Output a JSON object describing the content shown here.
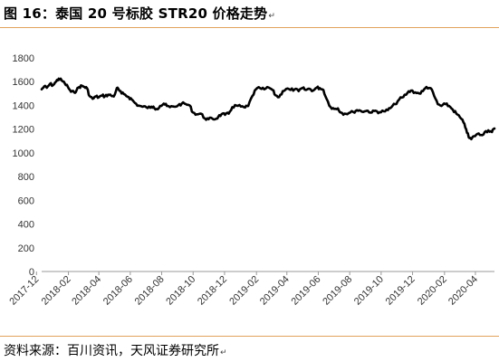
{
  "figure": {
    "title": "图 16：泰国 20 号标胶 STR20 价格走势",
    "title_mark": "↵",
    "source": "资料来源：百川资讯，天风证券研究所",
    "source_mark": "↵"
  },
  "chart_data": {
    "type": "line",
    "title": "",
    "xlabel": "",
    "ylabel": "",
    "ylim": [
      0,
      1800
    ],
    "yticks": [
      0,
      200,
      400,
      600,
      800,
      1000,
      1200,
      1400,
      1600,
      1800
    ],
    "xlim": [
      "2017-12-11",
      "2020-05-08"
    ],
    "xticks": [
      "2017-12",
      "2018-02",
      "2018-04",
      "2018-06",
      "2018-08",
      "2018-10",
      "2018-12",
      "2019-02",
      "2019-04",
      "2019-06",
      "2019-08",
      "2019-10",
      "2019-12",
      "2020-02",
      "2020-04"
    ],
    "grid": false,
    "legend": "none",
    "line_color": "#000000",
    "series": [
      {
        "points": [
          [
            "2017-12-11",
            1535
          ],
          [
            "2017-12-16",
            1560
          ],
          [
            "2017-12-21",
            1548
          ],
          [
            "2017-12-27",
            1580
          ],
          [
            "2018-01-02",
            1570
          ],
          [
            "2018-01-08",
            1600
          ],
          [
            "2018-01-13",
            1625
          ],
          [
            "2018-01-19",
            1610
          ],
          [
            "2018-01-25",
            1585
          ],
          [
            "2018-01-31",
            1555
          ],
          [
            "2018-02-06",
            1515
          ],
          [
            "2018-02-12",
            1510
          ],
          [
            "2018-02-17",
            1530
          ],
          [
            "2018-02-22",
            1555
          ],
          [
            "2018-02-27",
            1565
          ],
          [
            "2018-03-04",
            1555
          ],
          [
            "2018-03-09",
            1545
          ],
          [
            "2018-03-14",
            1478
          ],
          [
            "2018-03-20",
            1455
          ],
          [
            "2018-03-26",
            1475
          ],
          [
            "2018-04-01",
            1468
          ],
          [
            "2018-04-07",
            1482
          ],
          [
            "2018-04-13",
            1478
          ],
          [
            "2018-04-19",
            1490
          ],
          [
            "2018-04-25",
            1482
          ],
          [
            "2018-04-30",
            1475
          ],
          [
            "2018-05-06",
            1545
          ],
          [
            "2018-05-10",
            1530
          ],
          [
            "2018-05-15",
            1500
          ],
          [
            "2018-05-22",
            1490
          ],
          [
            "2018-05-29",
            1470
          ],
          [
            "2018-06-04",
            1450
          ],
          [
            "2018-06-10",
            1420
          ],
          [
            "2018-06-17",
            1398
          ],
          [
            "2018-06-25",
            1388
          ],
          [
            "2018-07-02",
            1385
          ],
          [
            "2018-07-10",
            1380
          ],
          [
            "2018-07-16",
            1390
          ],
          [
            "2018-07-22",
            1370
          ],
          [
            "2018-07-29",
            1395
          ],
          [
            "2018-08-05",
            1415
          ],
          [
            "2018-08-11",
            1395
          ],
          [
            "2018-08-17",
            1385
          ],
          [
            "2018-08-25",
            1390
          ],
          [
            "2018-09-02",
            1400
          ],
          [
            "2018-09-09",
            1415
          ],
          [
            "2018-09-17",
            1410
          ],
          [
            "2018-09-24",
            1400
          ],
          [
            "2018-10-01",
            1340
          ],
          [
            "2018-10-08",
            1325
          ],
          [
            "2018-10-16",
            1330
          ],
          [
            "2018-10-24",
            1290
          ],
          [
            "2018-10-31",
            1283
          ],
          [
            "2018-11-07",
            1290
          ],
          [
            "2018-11-13",
            1284
          ],
          [
            "2018-11-19",
            1305
          ],
          [
            "2018-11-25",
            1325
          ],
          [
            "2018-12-02",
            1320
          ],
          [
            "2018-12-09",
            1330
          ],
          [
            "2018-12-16",
            1385
          ],
          [
            "2018-12-24",
            1398
          ],
          [
            "2019-01-02",
            1390
          ],
          [
            "2019-01-10",
            1382
          ],
          [
            "2019-01-16",
            1395
          ],
          [
            "2019-01-24",
            1480
          ],
          [
            "2019-01-31",
            1535
          ],
          [
            "2019-02-08",
            1545
          ],
          [
            "2019-02-16",
            1535
          ],
          [
            "2019-02-25",
            1550
          ],
          [
            "2019-03-04",
            1530
          ],
          [
            "2019-03-10",
            1485
          ],
          [
            "2019-03-17",
            1470
          ],
          [
            "2019-03-24",
            1520
          ],
          [
            "2019-03-31",
            1540
          ],
          [
            "2019-04-08",
            1530
          ],
          [
            "2019-04-16",
            1535
          ],
          [
            "2019-04-24",
            1520
          ],
          [
            "2019-05-01",
            1545
          ],
          [
            "2019-05-08",
            1530
          ],
          [
            "2019-05-15",
            1540
          ],
          [
            "2019-05-22",
            1525
          ],
          [
            "2019-05-29",
            1550
          ],
          [
            "2019-06-04",
            1545
          ],
          [
            "2019-06-11",
            1530
          ],
          [
            "2019-06-17",
            1455
          ],
          [
            "2019-06-25",
            1385
          ],
          [
            "2019-07-02",
            1370
          ],
          [
            "2019-07-09",
            1375
          ],
          [
            "2019-07-15",
            1340
          ],
          [
            "2019-07-22",
            1330
          ],
          [
            "2019-07-30",
            1335
          ],
          [
            "2019-08-08",
            1345
          ],
          [
            "2019-08-15",
            1360
          ],
          [
            "2019-08-22",
            1355
          ],
          [
            "2019-08-30",
            1350
          ],
          [
            "2019-09-05",
            1355
          ],
          [
            "2019-09-13",
            1340
          ],
          [
            "2019-09-20",
            1355
          ],
          [
            "2019-09-28",
            1343
          ],
          [
            "2019-10-06",
            1350
          ],
          [
            "2019-10-14",
            1360
          ],
          [
            "2019-10-21",
            1385
          ],
          [
            "2019-10-28",
            1410
          ],
          [
            "2019-11-05",
            1450
          ],
          [
            "2019-11-13",
            1470
          ],
          [
            "2019-11-21",
            1505
          ],
          [
            "2019-11-28",
            1525
          ],
          [
            "2019-12-06",
            1510
          ],
          [
            "2019-12-14",
            1500
          ],
          [
            "2019-12-21",
            1520
          ],
          [
            "2019-12-28",
            1555
          ],
          [
            "2020-01-05",
            1545
          ],
          [
            "2020-01-12",
            1480
          ],
          [
            "2020-01-19",
            1410
          ],
          [
            "2020-01-26",
            1395
          ],
          [
            "2020-02-03",
            1410
          ],
          [
            "2020-02-10",
            1395
          ],
          [
            "2020-02-17",
            1365
          ],
          [
            "2020-02-24",
            1330
          ],
          [
            "2020-03-02",
            1300
          ],
          [
            "2020-03-09",
            1255
          ],
          [
            "2020-03-14",
            1200
          ],
          [
            "2020-03-19",
            1130
          ],
          [
            "2020-03-24",
            1115
          ],
          [
            "2020-03-29",
            1140
          ],
          [
            "2020-04-05",
            1160
          ],
          [
            "2020-04-12",
            1150
          ],
          [
            "2020-04-19",
            1175
          ],
          [
            "2020-04-26",
            1190
          ],
          [
            "2020-05-03",
            1175
          ],
          [
            "2020-05-08",
            1205
          ]
        ]
      }
    ]
  }
}
